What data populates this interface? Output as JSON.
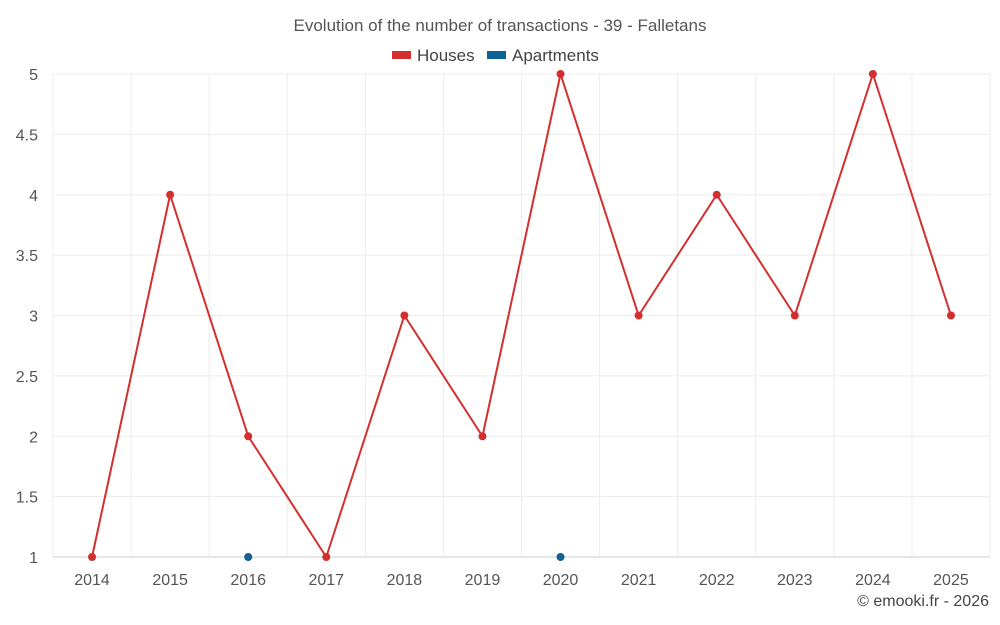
{
  "chart_data": {
    "type": "line",
    "title": "Evolution of the number of transactions - 39 - Falletans",
    "categories": [
      "2014",
      "2015",
      "2016",
      "2017",
      "2018",
      "2019",
      "2020",
      "2021",
      "2022",
      "2023",
      "2024",
      "2025"
    ],
    "series": [
      {
        "name": "Houses",
        "color": "#d32f2f",
        "values": [
          1,
          4,
          2,
          1,
          3,
          2,
          5,
          3,
          4,
          3,
          5,
          3
        ],
        "connected": true
      },
      {
        "name": "Apartments",
        "color": "#0d6194",
        "values": [
          null,
          null,
          1,
          null,
          null,
          null,
          1,
          null,
          null,
          null,
          null,
          null
        ],
        "connected": false
      }
    ],
    "ylim": [
      1,
      5
    ],
    "yticks": [
      "1",
      "1.5",
      "2",
      "2.5",
      "3",
      "3.5",
      "4",
      "4.5",
      "5"
    ],
    "grid": true,
    "legend_position": "top-center",
    "xlabel": "",
    "ylabel": ""
  },
  "footer": {
    "copyright": "© emooki.fr - 2026"
  }
}
